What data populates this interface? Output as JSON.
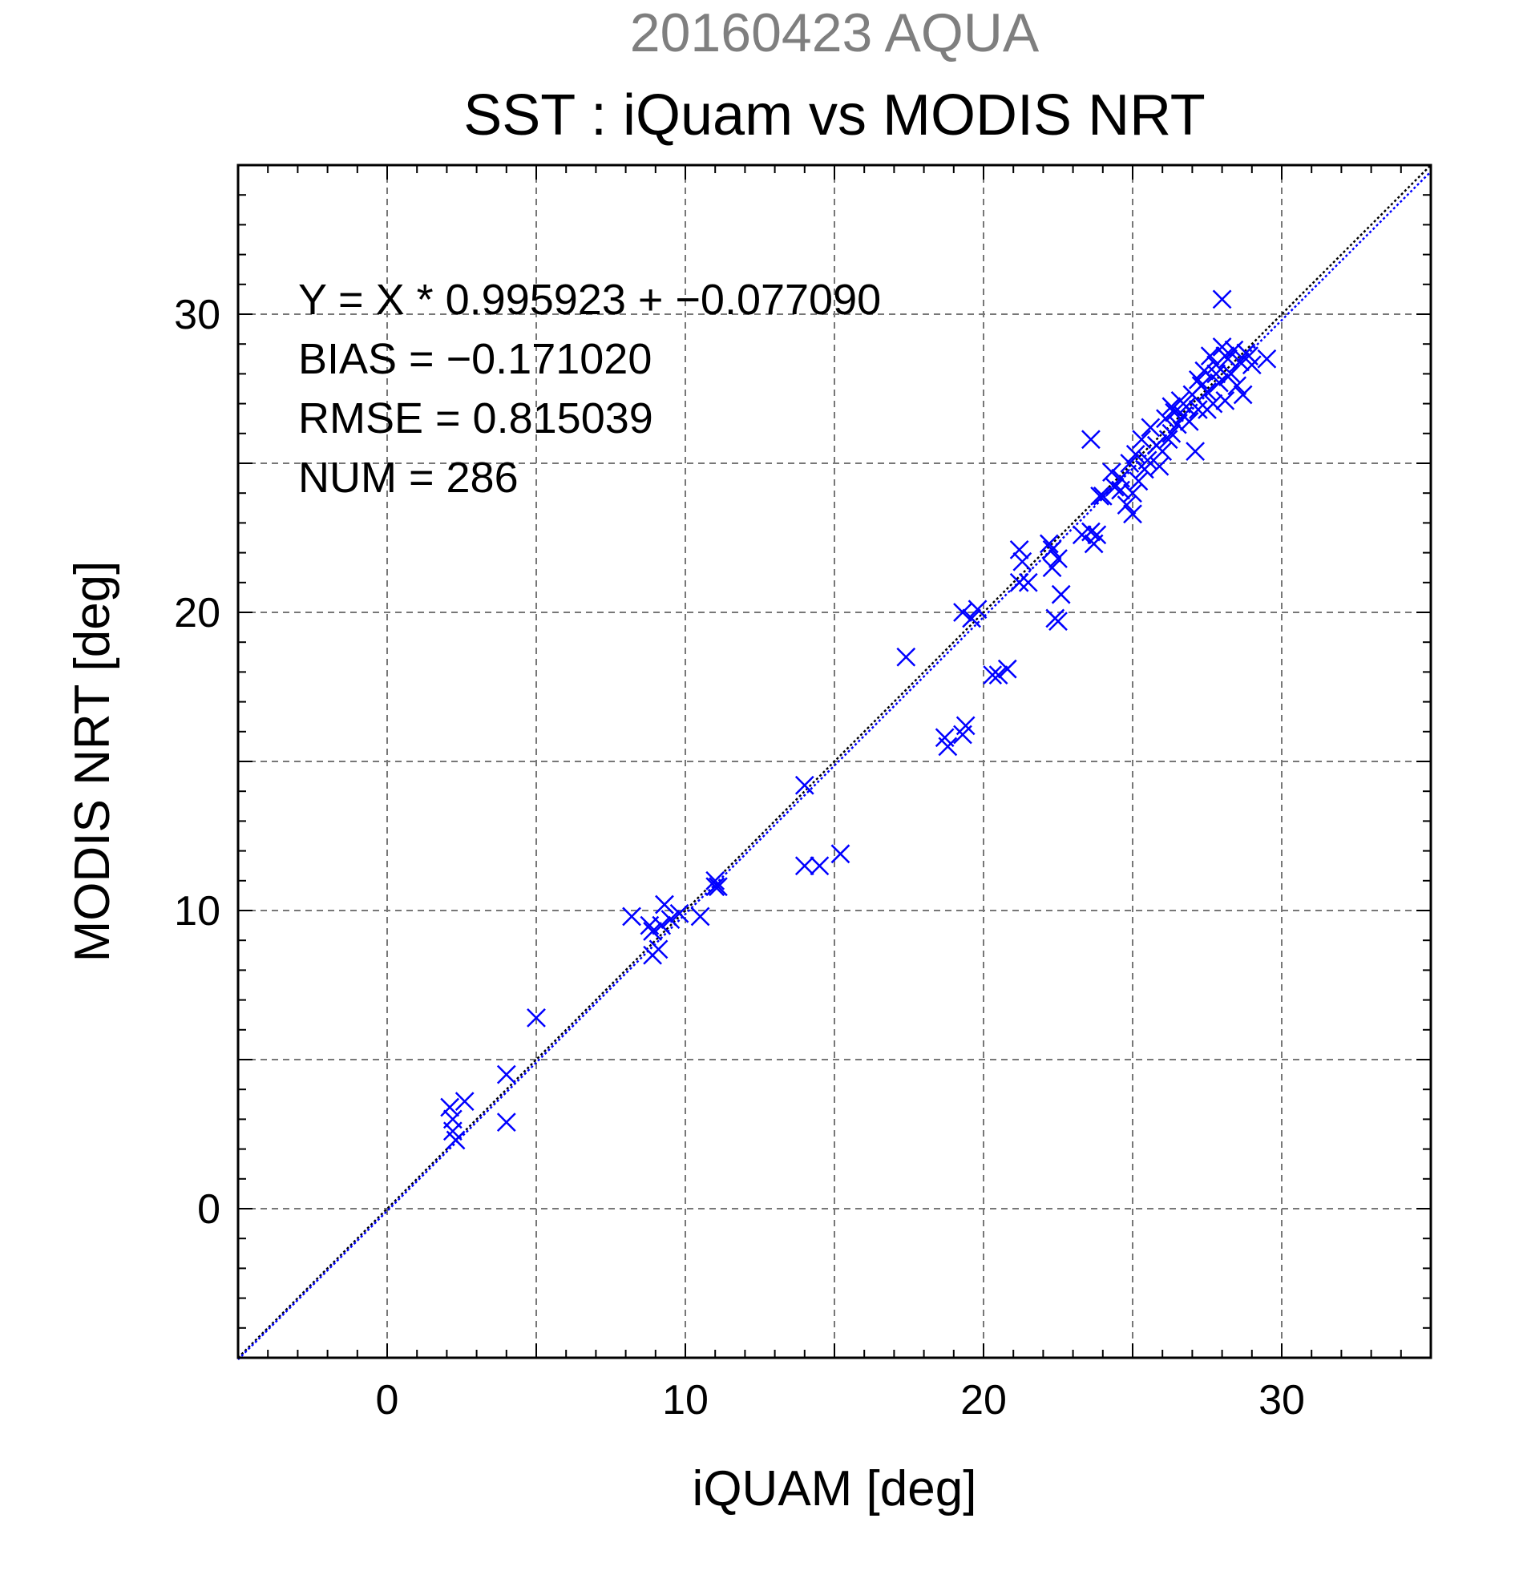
{
  "header": {
    "date_title": "20160423 AQUA",
    "main_title": "SST : iQuam vs MODIS NRT"
  },
  "stats": {
    "regression": "Y = X * 0.995923 + −0.077090",
    "bias": "BIAS = −0.171020",
    "rmse": "RMSE = 0.815039",
    "num": "NUM = 286"
  },
  "chart_data": {
    "type": "scatter",
    "title": "SST : iQuam vs MODIS NRT",
    "subtitle": "20160423 AQUA",
    "xlabel": "iQUAM [deg]",
    "ylabel": "MODIS NRT [deg]",
    "xlim": [
      -5,
      35
    ],
    "ylim": [
      -5,
      35
    ],
    "xticks": [
      "0",
      "10",
      "20",
      "30"
    ],
    "yticks": [
      "0",
      "10",
      "20",
      "30"
    ],
    "xtick_values": [
      0,
      10,
      20,
      30
    ],
    "ytick_values": [
      0,
      10,
      20,
      30
    ],
    "grid": true,
    "marker": "x",
    "marker_color": "#0000ff",
    "lines": [
      {
        "kind": "one-to-one",
        "color": "#000000",
        "style": "dotted"
      },
      {
        "kind": "regression",
        "slope": 0.995923,
        "intercept": -0.07709,
        "color": "#0000ff",
        "style": "dotted"
      }
    ],
    "points": [
      [
        2.1,
        3.4
      ],
      [
        2.2,
        3.0
      ],
      [
        2.2,
        2.6
      ],
      [
        2.3,
        2.3
      ],
      [
        2.6,
        3.6
      ],
      [
        4.0,
        4.5
      ],
      [
        4.0,
        2.9
      ],
      [
        5.0,
        6.4
      ],
      [
        8.2,
        9.8
      ],
      [
        8.8,
        9.5
      ],
      [
        8.9,
        9.3
      ],
      [
        8.9,
        8.5
      ],
      [
        9.1,
        8.7
      ],
      [
        9.2,
        9.5
      ],
      [
        9.3,
        10.2
      ],
      [
        9.5,
        9.7
      ],
      [
        9.8,
        9.9
      ],
      [
        10.5,
        9.8
      ],
      [
        11.0,
        11.0
      ],
      [
        11.0,
        10.8
      ],
      [
        11.1,
        10.8
      ],
      [
        14.0,
        14.2
      ],
      [
        14.0,
        11.5
      ],
      [
        14.5,
        11.5
      ],
      [
        15.2,
        11.9
      ],
      [
        17.4,
        18.5
      ],
      [
        18.7,
        15.8
      ],
      [
        18.8,
        15.5
      ],
      [
        19.3,
        15.9
      ],
      [
        19.4,
        16.2
      ],
      [
        19.3,
        20.0
      ],
      [
        19.6,
        19.8
      ],
      [
        19.8,
        20.1
      ],
      [
        20.3,
        17.9
      ],
      [
        20.5,
        17.9
      ],
      [
        20.8,
        18.1
      ],
      [
        21.2,
        21.0
      ],
      [
        21.2,
        22.1
      ],
      [
        21.3,
        21.7
      ],
      [
        21.5,
        21.0
      ],
      [
        22.2,
        22.3
      ],
      [
        22.3,
        21.5
      ],
      [
        22.4,
        19.8
      ],
      [
        22.5,
        19.7
      ],
      [
        22.5,
        21.8
      ],
      [
        22.6,
        20.6
      ],
      [
        22.3,
        22.1
      ],
      [
        23.3,
        22.6
      ],
      [
        23.6,
        22.7
      ],
      [
        23.7,
        22.3
      ],
      [
        23.8,
        22.6
      ],
      [
        23.6,
        25.8
      ],
      [
        23.9,
        23.9
      ],
      [
        24.0,
        23.9
      ],
      [
        24.3,
        24.7
      ],
      [
        24.4,
        24.2
      ],
      [
        24.6,
        24.5
      ],
      [
        24.8,
        23.6
      ],
      [
        24.9,
        25.0
      ],
      [
        25.0,
        23.3
      ],
      [
        25.0,
        24.0
      ],
      [
        25.1,
        25.3
      ],
      [
        25.2,
        24.4
      ],
      [
        25.3,
        25.8
      ],
      [
        25.5,
        25.1
      ],
      [
        25.6,
        26.2
      ],
      [
        25.8,
        25.6
      ],
      [
        25.9,
        24.9
      ],
      [
        26.0,
        25.4
      ],
      [
        26.1,
        26.5
      ],
      [
        26.2,
        25.8
      ],
      [
        26.3,
        26.9
      ],
      [
        26.4,
        26.7
      ],
      [
        26.5,
        26.3
      ],
      [
        26.6,
        27.1
      ],
      [
        26.7,
        26.6
      ],
      [
        26.8,
        26.9
      ],
      [
        26.9,
        26.4
      ],
      [
        27.0,
        27.3
      ],
      [
        27.1,
        25.4
      ],
      [
        27.2,
        26.8
      ],
      [
        27.3,
        27.6
      ],
      [
        27.4,
        28.1
      ],
      [
        27.5,
        27.4
      ],
      [
        27.6,
        28.6
      ],
      [
        27.7,
        27.0
      ],
      [
        27.8,
        28.3
      ],
      [
        27.9,
        27.7
      ],
      [
        28.0,
        30.5
      ],
      [
        28.0,
        28.9
      ],
      [
        28.1,
        27.1
      ],
      [
        28.2,
        28.5
      ],
      [
        28.3,
        28.0
      ],
      [
        28.4,
        28.8
      ],
      [
        28.5,
        27.6
      ],
      [
        28.6,
        28.4
      ],
      [
        28.7,
        27.3
      ],
      [
        28.8,
        28.7
      ],
      [
        28.9,
        28.6
      ],
      [
        29.0,
        28.3
      ],
      [
        29.5,
        28.5
      ],
      [
        27.5,
        26.8
      ],
      [
        26.3,
        26.0
      ],
      [
        25.4,
        24.8
      ],
      [
        24.6,
        24.1
      ],
      [
        28.2,
        27.9
      ],
      [
        27.8,
        28.0
      ],
      [
        28.1,
        28.6
      ],
      [
        27.2,
        27.8
      ]
    ]
  }
}
